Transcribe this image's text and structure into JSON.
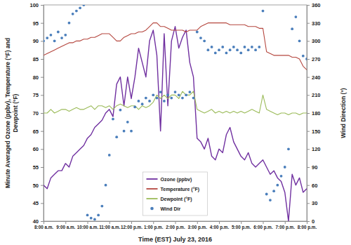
{
  "chart_data": {
    "type": "line",
    "xlabel": "Time (EST) July 23, 2016",
    "ylabel": [
      "Minute Averaged Ozone (ppbv), Temperature (°F) and",
      "Dewpoint (°F)"
    ],
    "y2label": "Wind Direction (°)",
    "x": [
      480,
      490,
      500,
      510,
      520,
      530,
      540,
      550,
      560,
      570,
      580,
      590,
      600,
      610,
      620,
      630,
      640,
      650,
      660,
      670,
      680,
      690,
      700,
      710,
      720,
      730,
      740,
      750,
      760,
      770,
      780,
      790,
      800,
      810,
      820,
      830,
      840,
      850,
      860,
      870,
      880,
      890,
      900,
      910,
      920,
      930,
      940,
      950,
      960,
      970,
      980,
      990,
      1000,
      1010,
      1020,
      1030,
      1040,
      1050,
      1060,
      1070,
      1080,
      1090,
      1100,
      1110,
      1120,
      1130,
      1140,
      1150,
      1160,
      1170,
      1180,
      1190,
      1200
    ],
    "xlim": [
      480,
      1200
    ],
    "xticks": [
      {
        "value": 480,
        "label": "8:00 a.m."
      },
      {
        "value": 540,
        "label": "9:00 a.m."
      },
      {
        "value": 600,
        "label": "10:00 a.m."
      },
      {
        "value": 660,
        "label": "11:00 a.m."
      },
      {
        "value": 720,
        "label": "12:00 p.m."
      },
      {
        "value": 780,
        "label": "1:00 p.m."
      },
      {
        "value": 840,
        "label": "2:00 p.m."
      },
      {
        "value": 900,
        "label": "3:00 p.m."
      },
      {
        "value": 960,
        "label": "4:00 p.m."
      },
      {
        "value": 1020,
        "label": "5:00 p.m."
      },
      {
        "value": 1080,
        "label": "6:00 p.m."
      },
      {
        "value": 1140,
        "label": "7:00 p.m."
      },
      {
        "value": 1200,
        "label": "8:00 p.m."
      }
    ],
    "ylim": [
      40,
      100
    ],
    "yticks": [
      40,
      45,
      50,
      55,
      60,
      65,
      70,
      75,
      80,
      85,
      90,
      95,
      100
    ],
    "y2lim": [
      0,
      360
    ],
    "y2ticks": [
      0,
      30,
      60,
      90,
      120,
      150,
      180,
      210,
      240,
      270,
      300,
      330,
      360
    ],
    "grid": false,
    "legend": "bottom",
    "series": [
      {
        "name": "Ozone (ppbv)",
        "type": "line",
        "color": "#7030a0",
        "line_style": "solid",
        "values": [
          50,
          49,
          52,
          53,
          54,
          54,
          56,
          55,
          58,
          59,
          60,
          61,
          63,
          64,
          66,
          67,
          68,
          70,
          71,
          69,
          78,
          80,
          72,
          80,
          74,
          80,
          88,
          84,
          80,
          90,
          93,
          86,
          65,
          92,
          72,
          90,
          94,
          88,
          91,
          93,
          84,
          80,
          63,
          62,
          60,
          63,
          58,
          57,
          60,
          59,
          64,
          66,
          62,
          60,
          58,
          57,
          59,
          56,
          55,
          56,
          57,
          55,
          53,
          54,
          52,
          51,
          48,
          40,
          53,
          50,
          52,
          48,
          49
        ]
      },
      {
        "name": "Temperature (°F)",
        "type": "line",
        "color": "#b5473f",
        "line_style": "solid",
        "values": [
          86,
          86.5,
          87,
          87.5,
          88,
          88.5,
          89,
          89.5,
          89.5,
          90,
          90,
          90.5,
          90.5,
          91,
          91,
          91.5,
          92,
          92,
          92,
          91,
          90,
          90,
          91,
          91.5,
          92,
          92,
          92.5,
          92.5,
          93,
          94,
          95,
          95,
          94,
          94,
          93.5,
          93,
          93,
          93,
          93,
          92.5,
          93,
          93,
          93,
          94,
          94.5,
          95,
          95,
          95,
          95,
          95,
          95,
          94.5,
          94.5,
          94.5,
          94.5,
          94.5,
          94,
          94,
          94,
          93.5,
          93.5,
          87,
          86.5,
          86,
          86,
          86,
          86,
          86,
          85.5,
          85.5,
          85,
          83,
          82
        ]
      },
      {
        "name": "Dewpoint (°F)",
        "type": "line",
        "color": "#9bbb59",
        "line_style": "solid",
        "values": [
          70,
          70,
          71,
          70,
          70.5,
          71,
          71,
          70.5,
          71,
          71.5,
          71,
          71,
          71.5,
          72,
          71,
          72,
          72,
          71.5,
          72,
          71,
          72,
          72.5,
          72,
          71.5,
          72,
          72,
          71,
          72,
          71.5,
          72,
          73,
          75,
          74,
          75,
          74,
          75,
          75,
          74,
          76,
          75,
          75,
          76,
          71,
          70.5,
          70,
          70.5,
          71,
          70,
          70.5,
          70,
          70.5,
          70,
          70.5,
          70,
          70.5,
          70,
          70.5,
          71,
          70.5,
          70,
          75,
          71,
          70.5,
          70,
          69.5,
          70,
          70,
          69.5,
          70,
          70,
          69.5,
          70,
          70
        ]
      },
      {
        "name": "Wind Dir",
        "type": "scatter",
        "marker": "circle",
        "axis": "y2",
        "color": "#4a7ebb",
        "values": [
          300,
          305,
          310,
          300,
          315,
          305,
          310,
          330,
          345,
          350,
          355,
          360,
          10,
          5,
          3,
          10,
          25,
          60,
          110,
          170,
          140,
          185,
          150,
          165,
          150,
          190,
          200,
          195,
          205,
          200,
          210,
          205,
          215,
          200,
          210,
          205,
          215,
          210,
          205,
          210,
          215,
          205,
          315,
          305,
          300,
          285,
          290,
          280,
          285,
          290,
          280,
          285,
          290,
          285,
          280,
          290,
          285,
          290,
          285,
          290,
          350,
          45,
          35,
          50,
          60,
          75,
          90,
          120,
          320,
          340,
          300,
          275,
          270
        ]
      }
    ]
  }
}
